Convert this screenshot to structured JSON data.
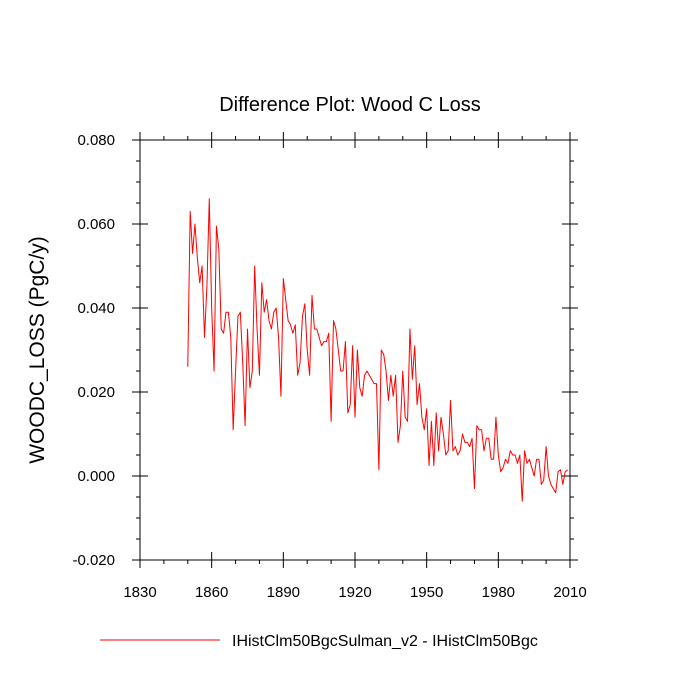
{
  "chart_data": {
    "type": "line",
    "title": "Difference Plot: Wood C Loss",
    "xlabel": "",
    "ylabel": "WOODC_LOSS  (PgC/y)",
    "xlim": [
      1830,
      2010
    ],
    "ylim": [
      -0.02,
      0.08
    ],
    "xticks": [
      "1830",
      "1860",
      "1890",
      "1920",
      "1950",
      "1980",
      "2010"
    ],
    "yticks": [
      "-0.020",
      "0.000",
      "0.020",
      "0.040",
      "0.060",
      "0.080"
    ],
    "grid": false,
    "legend_position": "bottom",
    "series": [
      {
        "name": "IHistClm50BgcSulman_v2 - IHistClm50Bgc",
        "color": "#ff0000",
        "x": [
          1850,
          1851,
          1852,
          1853,
          1854,
          1855,
          1856,
          1857,
          1858,
          1859,
          1860,
          1861,
          1862,
          1863,
          1864,
          1865,
          1866,
          1867,
          1868,
          1869,
          1870,
          1871,
          1872,
          1873,
          1874,
          1875,
          1876,
          1877,
          1878,
          1879,
          1880,
          1881,
          1882,
          1883,
          1884,
          1885,
          1886,
          1887,
          1888,
          1889,
          1890,
          1891,
          1892,
          1893,
          1894,
          1895,
          1896,
          1897,
          1898,
          1899,
          1900,
          1901,
          1902,
          1903,
          1904,
          1905,
          1906,
          1907,
          1908,
          1909,
          1910,
          1911,
          1912,
          1913,
          1914,
          1915,
          1916,
          1917,
          1918,
          1919,
          1920,
          1921,
          1922,
          1923,
          1924,
          1925,
          1926,
          1927,
          1928,
          1929,
          1930,
          1931,
          1932,
          1933,
          1934,
          1935,
          1936,
          1937,
          1938,
          1939,
          1940,
          1941,
          1942,
          1943,
          1944,
          1945,
          1946,
          1947,
          1948,
          1949,
          1950,
          1951,
          1952,
          1953,
          1954,
          1955,
          1956,
          1957,
          1958,
          1959,
          1960,
          1961,
          1962,
          1963,
          1964,
          1965,
          1966,
          1967,
          1968,
          1969,
          1970,
          1971,
          1972,
          1973,
          1974,
          1975,
          1976,
          1977,
          1978,
          1979,
          1980,
          1981,
          1982,
          1983,
          1984,
          1985,
          1986,
          1987,
          1988,
          1989,
          1990,
          1991,
          1992,
          1993,
          1994,
          1995,
          1996,
          1997,
          1998,
          1999,
          2000,
          2001,
          2002,
          2003,
          2004,
          2005,
          2006,
          2007,
          2008,
          2009
        ],
        "values": [
          0.026,
          0.063,
          0.053,
          0.06,
          0.052,
          0.046,
          0.05,
          0.033,
          0.045,
          0.066,
          0.04,
          0.025,
          0.0595,
          0.054,
          0.035,
          0.034,
          0.039,
          0.039,
          0.033,
          0.011,
          0.025,
          0.038,
          0.039,
          0.027,
          0.012,
          0.035,
          0.021,
          0.025,
          0.05,
          0.035,
          0.024,
          0.046,
          0.039,
          0.042,
          0.037,
          0.035,
          0.039,
          0.04,
          0.033,
          0.019,
          0.047,
          0.042,
          0.037,
          0.036,
          0.034,
          0.036,
          0.024,
          0.027,
          0.038,
          0.041,
          0.03,
          0.024,
          0.043,
          0.035,
          0.035,
          0.033,
          0.031,
          0.032,
          0.032,
          0.034,
          0.013,
          0.037,
          0.035,
          0.03,
          0.025,
          0.025,
          0.032,
          0.015,
          0.017,
          0.031,
          0.014,
          0.03,
          0.021,
          0.019,
          0.024,
          0.025,
          0.024,
          0.023,
          0.022,
          0.022,
          0.0015,
          0.03,
          0.029,
          0.025,
          0.018,
          0.024,
          0.019,
          0.024,
          0.008,
          0.012,
          0.025,
          0.014,
          0.013,
          0.035,
          0.023,
          0.031,
          0.017,
          0.022,
          0.014,
          0.011,
          0.016,
          0.0025,
          0.013,
          0.0025,
          0.015,
          0.006,
          0.014,
          0.01,
          0.005,
          0.006,
          0.018,
          0.006,
          0.007,
          0.005,
          0.006,
          0.01,
          0.008,
          0.008,
          0.007,
          0.009,
          -0.003,
          0.012,
          0.011,
          0.011,
          0.006,
          0.009,
          0.009,
          0.004,
          0.004,
          0.014,
          0.005,
          0.001,
          0.002,
          0.004,
          0.003,
          0.006,
          0.005,
          0.005,
          0.003,
          0.005,
          -0.006,
          0.006,
          0.003,
          0.004,
          0.002,
          0.0,
          0.004,
          0.004,
          -0.002,
          -0.001,
          0.007,
          0.0,
          -0.002,
          -0.003,
          -0.004,
          0.001,
          0.0015,
          -0.002,
          0.001,
          0.0015
        ]
      }
    ]
  }
}
